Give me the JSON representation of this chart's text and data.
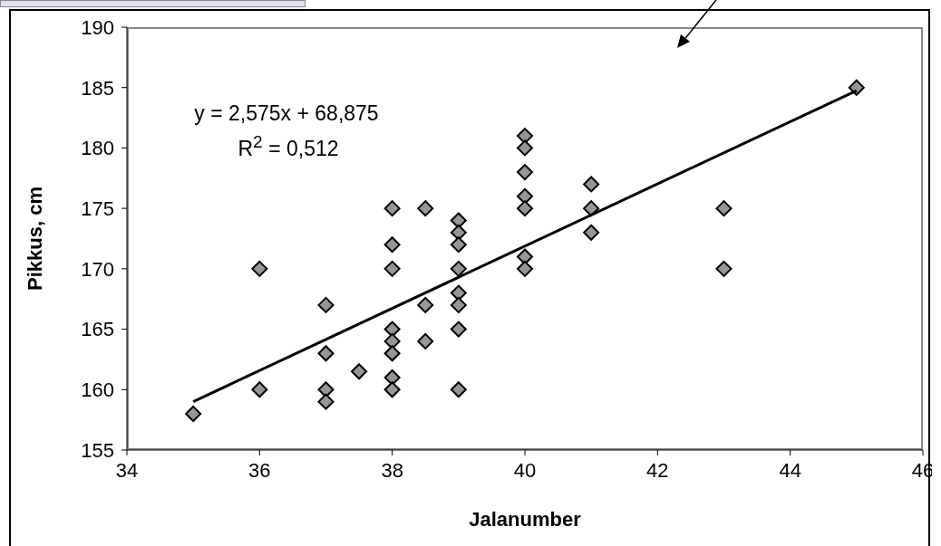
{
  "chart_data": {
    "type": "scatter",
    "xlabel": "Jalanumber",
    "ylabel": "Pikkus, cm",
    "xlim": [
      34,
      46
    ],
    "xticks": [
      34,
      36,
      38,
      40,
      42,
      44,
      46
    ],
    "ylim": [
      155,
      190
    ],
    "yticks": [
      155,
      160,
      165,
      170,
      175,
      180,
      185,
      190
    ],
    "annotations": [
      "y = 2,575x + 68,875",
      "R$^{2}$ = 0,512"
    ],
    "series": [
      {
        "color": "#969696",
        "marker": "diamond",
        "x": [
          35,
          36,
          36,
          37,
          37,
          37,
          37,
          37.5,
          38,
          38,
          38,
          38,
          38,
          38,
          38,
          38,
          38.5,
          38.5,
          38.5,
          39,
          39,
          39,
          39,
          39,
          39,
          39,
          39,
          40,
          40,
          40,
          40,
          40,
          40,
          40,
          41,
          41,
          41,
          43,
          43,
          45
        ],
        "values": [
          158,
          170,
          160,
          167,
          163,
          160,
          159,
          161.5,
          175,
          172,
          170,
          165,
          164,
          163,
          161,
          160,
          175,
          167,
          164,
          174,
          173,
          172,
          170,
          168,
          167,
          165,
          160,
          181,
          180,
          178,
          176,
          175,
          171,
          170,
          177,
          175,
          173,
          175,
          170,
          185
        ]
      },
      {
        "type": "line",
        "color": "#000000",
        "x": [
          35,
          45
        ],
        "values": [
          159,
          184.75
        ],
        "line_style": "solid",
        "marker": "none"
      }
    ]
  }
}
